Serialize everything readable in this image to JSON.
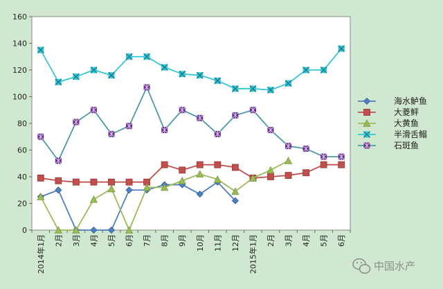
{
  "chart_data": {
    "type": "line",
    "categories": [
      "2014年1月",
      "2月",
      "3月",
      "4月",
      "5月",
      "6月",
      "7月",
      "8月",
      "9月",
      "10月",
      "11月",
      "12月",
      "2015年1月",
      "2月",
      "3月",
      "4月",
      "5月",
      "6月"
    ],
    "ylim": [
      0,
      160
    ],
    "yticks": [
      0,
      20,
      40,
      60,
      80,
      100,
      120,
      140,
      160
    ],
    "grid": false,
    "legend_position": "right",
    "series": [
      {
        "name": "海水鲈鱼",
        "color": "#4f7fbf",
        "marker": "diamond",
        "values": [
          25,
          30,
          0,
          0,
          0,
          30,
          30,
          34,
          34,
          27,
          36,
          22,
          null,
          null,
          null,
          null,
          null,
          null
        ]
      },
      {
        "name": "大菱鲆",
        "color": "#c0504d",
        "marker": "square",
        "values": [
          39,
          37,
          36,
          36,
          36,
          36,
          36,
          49,
          45,
          49,
          49,
          47,
          39,
          40,
          41,
          43,
          49,
          49
        ]
      },
      {
        "name": "大黄鱼",
        "color": "#9bbb59",
        "marker": "triangle",
        "values": [
          25,
          0,
          0,
          23,
          31,
          0,
          32,
          32,
          37,
          42,
          38,
          29,
          39,
          45,
          52,
          null,
          null,
          null
        ]
      },
      {
        "name": "半滑舌鳎",
        "color": "#33c7d8",
        "marker": "x",
        "values": [
          135,
          111,
          115,
          120,
          116,
          130,
          130,
          122,
          117,
          116,
          112,
          106,
          106,
          105,
          110,
          120,
          120,
          136
        ]
      },
      {
        "name": "石斑鱼",
        "color": "#4a9aa8",
        "marker": "star",
        "marker_fill": "#6a2c8f",
        "values": [
          70,
          52,
          81,
          90,
          72,
          78,
          107,
          75,
          90,
          84,
          72,
          86,
          90,
          75,
          63,
          61,
          55,
          55
        ]
      }
    ]
  },
  "watermark": {
    "text": "中国水产",
    "icon": "wechat-icon"
  }
}
